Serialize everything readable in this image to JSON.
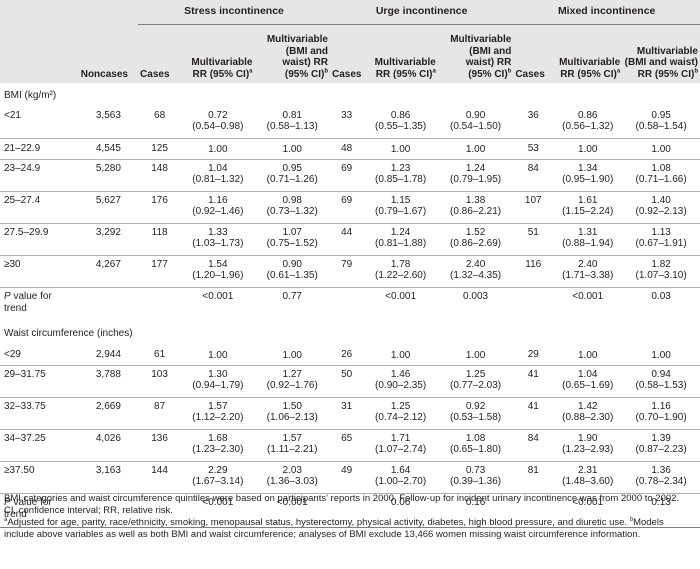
{
  "header": {
    "groups": [
      "Stress incontinence",
      "Urge incontinence",
      "Mixed incontinence"
    ],
    "noncases": "Noncases",
    "cases": "Cases",
    "mv_rr": "Multivariable RR (95% CI)",
    "mv_rr_sup": "a",
    "bmi_waist_rr": "Multivariable (BMI and waist) RR (95% CI)",
    "bmi_waist_rr_sup": "b"
  },
  "sections": [
    {
      "title": "BMI (kg/m²)",
      "rows": [
        {
          "label": "<21",
          "noncases": "3,563",
          "stress": {
            "cases": "68",
            "mv": "0.72",
            "mv_ci": "(0.54–0.98)",
            "bw": "0.81",
            "bw_ci": "(0.58–1.13)"
          },
          "urge": {
            "cases": "33",
            "mv": "0.86",
            "mv_ci": "(0.55–1.35)",
            "bw": "0.90",
            "bw_ci": "(0.54–1.50)"
          },
          "mixed": {
            "cases": "36",
            "mv": "0.86",
            "mv_ci": "(0.56–1.32)",
            "bw": "0.95",
            "bw_ci": "(0.58–1.54)"
          }
        },
        {
          "label": "21–22.9",
          "noncases": "4,545",
          "stress": {
            "cases": "125",
            "mv": "1.00",
            "mv_ci": "",
            "bw": "1.00",
            "bw_ci": ""
          },
          "urge": {
            "cases": "48",
            "mv": "1.00",
            "mv_ci": "",
            "bw": "1.00",
            "bw_ci": ""
          },
          "mixed": {
            "cases": "53",
            "mv": "1.00",
            "mv_ci": "",
            "bw": "1.00",
            "bw_ci": ""
          }
        },
        {
          "label": "23–24.9",
          "noncases": "5,280",
          "stress": {
            "cases": "148",
            "mv": "1.04",
            "mv_ci": "(0.81–1.32)",
            "bw": "0.95",
            "bw_ci": "(0.71–1.26)"
          },
          "urge": {
            "cases": "69",
            "mv": "1.23",
            "mv_ci": "(0.85–1.78)",
            "bw": "1.24",
            "bw_ci": "(0.79–1.95)"
          },
          "mixed": {
            "cases": "84",
            "mv": "1.34",
            "mv_ci": "(0.95–1.90)",
            "bw": "1.08",
            "bw_ci": "(0.71–1.66)"
          }
        },
        {
          "label": "25–27.4",
          "noncases": "5,627",
          "stress": {
            "cases": "176",
            "mv": "1.16",
            "mv_ci": "(0.92–1.46)",
            "bw": "0.98",
            "bw_ci": "(0.73–1.32)"
          },
          "urge": {
            "cases": "69",
            "mv": "1.15",
            "mv_ci": "(0.79–1.67)",
            "bw": "1.38",
            "bw_ci": "(0.86–2.21)"
          },
          "mixed": {
            "cases": "107",
            "mv": "1.61",
            "mv_ci": "(1.15–2.24)",
            "bw": "1.40",
            "bw_ci": "(0.92–2.13)"
          }
        },
        {
          "label": "27.5–29.9",
          "noncases": "3,292",
          "stress": {
            "cases": "118",
            "mv": "1.33",
            "mv_ci": "(1.03–1.73)",
            "bw": "1.07",
            "bw_ci": "(0.75–1.52)"
          },
          "urge": {
            "cases": "44",
            "mv": "1.24",
            "mv_ci": "(0.81–1.88)",
            "bw": "1.52",
            "bw_ci": "(0.86–2.69)"
          },
          "mixed": {
            "cases": "51",
            "mv": "1.31",
            "mv_ci": "(0.88–1.94)",
            "bw": "1.13",
            "bw_ci": "(0.67–1.91)"
          }
        },
        {
          "label": "≥30",
          "noncases": "4,267",
          "stress": {
            "cases": "177",
            "mv": "1.54",
            "mv_ci": "(1.20–1.96)",
            "bw": "0.90",
            "bw_ci": "(0.61–1.35)"
          },
          "urge": {
            "cases": "79",
            "mv": "1.78",
            "mv_ci": "(1.22–2.60)",
            "bw": "2.40",
            "bw_ci": "(1.32–4.35)"
          },
          "mixed": {
            "cases": "116",
            "mv": "2.40",
            "mv_ci": "(1.71–3.38)",
            "bw": "1.82",
            "bw_ci": "(1.07–3.10)"
          }
        }
      ],
      "trend": {
        "p": "P",
        "label": "value for trend",
        "stress_mv": "<0.001",
        "stress_bw": "0.77",
        "urge_mv": "<0.001",
        "urge_bw": "0.003",
        "mixed_mv": "<0.001",
        "mixed_bw": "0.03"
      }
    },
    {
      "title": "Waist circumference (inches)",
      "rows": [
        {
          "label": "<29",
          "noncases": "2,944",
          "stress": {
            "cases": "61",
            "mv": "1.00",
            "mv_ci": "",
            "bw": "1.00",
            "bw_ci": ""
          },
          "urge": {
            "cases": "26",
            "mv": "1.00",
            "mv_ci": "",
            "bw": "1.00",
            "bw_ci": ""
          },
          "mixed": {
            "cases": "29",
            "mv": "1.00",
            "mv_ci": "",
            "bw": "1.00",
            "bw_ci": ""
          }
        },
        {
          "label": "29–31.75",
          "noncases": "3,788",
          "stress": {
            "cases": "103",
            "mv": "1.30",
            "mv_ci": "(0.94–1.79)",
            "bw": "1.27",
            "bw_ci": "(0.92–1.76)"
          },
          "urge": {
            "cases": "50",
            "mv": "1.46",
            "mv_ci": "(0.90–2.35)",
            "bw": "1.25",
            "bw_ci": "(0.77–2.03)"
          },
          "mixed": {
            "cases": "41",
            "mv": "1.04",
            "mv_ci": "(0.65–1.69)",
            "bw": "0.94",
            "bw_ci": "(0.58–1.53)"
          }
        },
        {
          "label": "32–33.75",
          "noncases": "2,669",
          "stress": {
            "cases": "87",
            "mv": "1.57",
            "mv_ci": "(1.12–2.20)",
            "bw": "1.50",
            "bw_ci": "(1.06–2.13)"
          },
          "urge": {
            "cases": "31",
            "mv": "1.25",
            "mv_ci": "(0.74–2.12)",
            "bw": "0.92",
            "bw_ci": "(0.53–1.58)"
          },
          "mixed": {
            "cases": "41",
            "mv": "1.42",
            "mv_ci": "(0.88–2.30)",
            "bw": "1.16",
            "bw_ci": "(0.70–1.90)"
          }
        },
        {
          "label": "34–37.25",
          "noncases": "4,026",
          "stress": {
            "cases": "136",
            "mv": "1.68",
            "mv_ci": "(1.23–2.30)",
            "bw": "1.57",
            "bw_ci": "(1.11–2.21)"
          },
          "urge": {
            "cases": "65",
            "mv": "1.71",
            "mv_ci": "(1.07–2.74)",
            "bw": "1.08",
            "bw_ci": "(0.65–1.80)"
          },
          "mixed": {
            "cases": "84",
            "mv": "1.90",
            "mv_ci": "(1.23–2.93)",
            "bw": "1.39",
            "bw_ci": "(0.87–2.23)"
          }
        },
        {
          "label": "≥37.50",
          "noncases": "3,163",
          "stress": {
            "cases": "144",
            "mv": "2.29",
            "mv_ci": "(1.67–3.14)",
            "bw": "2.03",
            "bw_ci": "(1.36–3.03)"
          },
          "urge": {
            "cases": "49",
            "mv": "1.64",
            "mv_ci": "(1.00–2.70)",
            "bw": "0.73",
            "bw_ci": "(0.39–1.36)"
          },
          "mixed": {
            "cases": "81",
            "mv": "2.31",
            "mv_ci": "(1.48–3.60)",
            "bw": "1.36",
            "bw_ci": "(0.78–2.34)"
          }
        }
      ],
      "trend": {
        "p": "P",
        "label": "value for trend",
        "stress_mv": "<0.001",
        "stress_bw": "<0.001",
        "urge_mv": "0.06",
        "urge_bw": "0.16",
        "mixed_mv": "<0.001",
        "mixed_bw": "0.13"
      }
    }
  ],
  "notes": {
    "line1": "BMI categories and waist circumference quintiles were based on participants' reports in 2000. Follow-up for incident urinary incontinence was from 2000 to 2002.",
    "line2": "CI, confidence interval; RR, relative risk.",
    "sup_a": "a",
    "note_a": "Adjusted for age, parity, race/ethnicity, smoking, menopausal status, hysterectomy, physical activity, diabetes, high blood pressure, and diuretic use. ",
    "sup_b": "b",
    "note_b": "Models include above variables as well as both BMI and waist circumference; analyses of BMI exclude 13,466 women missing waist circumference information."
  }
}
